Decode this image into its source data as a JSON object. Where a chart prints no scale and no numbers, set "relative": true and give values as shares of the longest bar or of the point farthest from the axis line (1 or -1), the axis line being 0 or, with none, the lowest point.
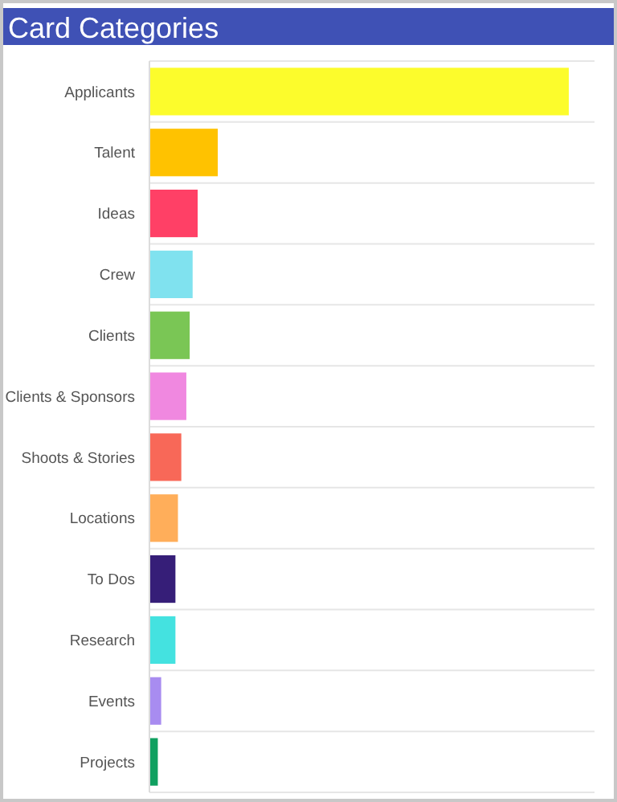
{
  "chart_data": {
    "type": "bar",
    "orientation": "horizontal",
    "relative": true,
    "title": "Card Categories",
    "categories": [
      "Applicants",
      "Talent",
      "Ideas",
      "Crew",
      "Clients",
      "Clients & Sponsors",
      "Shoots & Stories",
      "Locations",
      "To Dos",
      "Research",
      "Events",
      "Projects"
    ],
    "values": [
      1,
      0.163,
      0.115,
      0.103,
      0.096,
      0.088,
      0.076,
      0.068,
      0.062,
      0.062,
      0.028,
      0.02
    ],
    "colors": [
      "#fcfc2c",
      "#ffc200",
      "#ff4066",
      "#80e2ef",
      "#7ac655",
      "#f088e0",
      "#f86858",
      "#ffae5a",
      "#361e78",
      "#44e2e0",
      "#a88cf0",
      "#10a060"
    ],
    "grid": "y"
  }
}
